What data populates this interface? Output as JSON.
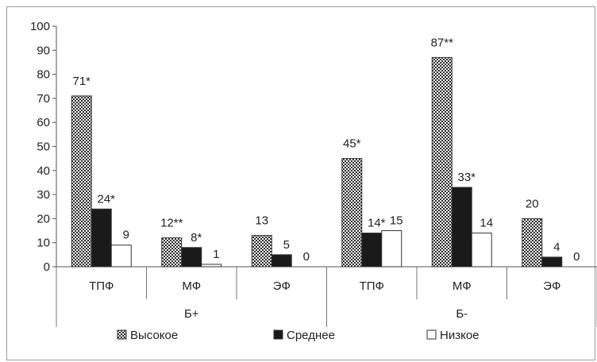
{
  "chart_data": {
    "type": "bar",
    "title": "",
    "xlabel": "",
    "ylabel": "",
    "ylim": [
      0,
      100
    ],
    "yticks": [
      "0",
      "10",
      "20",
      "30",
      "40",
      "50",
      "60",
      "70",
      "80",
      "90",
      "100"
    ],
    "groups": [
      "Б+",
      "Б-"
    ],
    "categories": [
      "ТПФ",
      "МФ",
      "ЭФ",
      "ТПФ",
      "МФ",
      "ЭФ"
    ],
    "series": [
      {
        "name": "Высокое",
        "values": [
          71,
          12,
          13,
          45,
          87,
          20
        ],
        "labels": [
          "71*",
          "12**",
          "13",
          "45*",
          "87**",
          "20"
        ],
        "fill": "checker"
      },
      {
        "name": "Среднее",
        "values": [
          24,
          8,
          5,
          14,
          33,
          4
        ],
        "labels": [
          "24*",
          "8*",
          "5",
          "14*",
          "33*",
          "4"
        ],
        "fill": "#1a1a1a"
      },
      {
        "name": "Низкое",
        "values": [
          9,
          1,
          0,
          15,
          14,
          0
        ],
        "labels": [
          "9",
          "1",
          "0",
          "15",
          "14",
          "0"
        ],
        "fill": "#ffffff"
      }
    ],
    "grid": false,
    "legend_position": "bottom"
  }
}
